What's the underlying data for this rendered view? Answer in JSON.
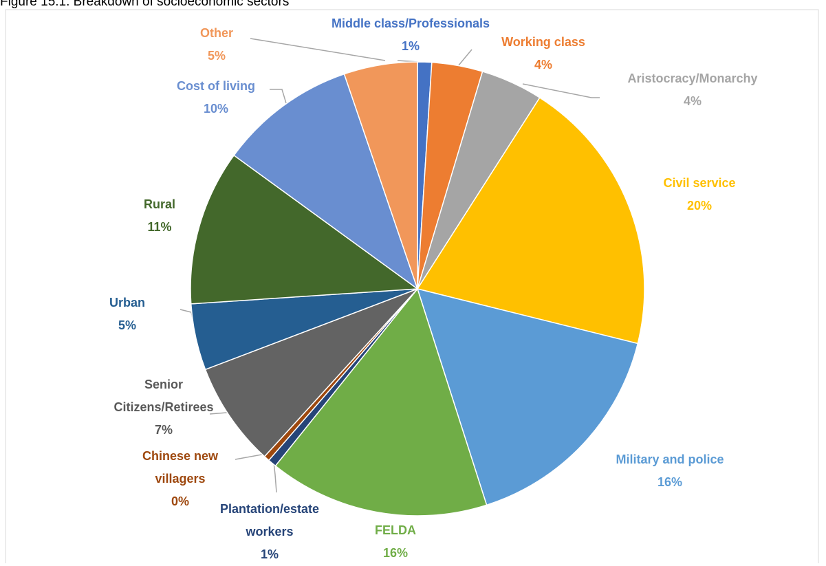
{
  "chart_data": {
    "type": "pie",
    "title": "Figure 15.1: Breakdown of socioeconomic sectors",
    "categories": [
      "Middle class/Professionals",
      "Working class",
      "Aristocracy/Monarchy",
      "Civil service",
      "Military and police",
      "FELDA",
      "Plantation/estate workers",
      "Chinese new villagers",
      "Senior Citizens/Retirees",
      "Urban",
      "Rural",
      "Cost of living",
      "Other"
    ],
    "values": [
      1.0,
      3.6,
      4.4,
      19.7,
      16.1,
      15.6,
      0.6,
      0.4,
      7.4,
      4.7,
      11.0,
      9.7,
      5.2
    ],
    "value_labels": [
      "1%",
      "4%",
      "4%",
      "20%",
      "16%",
      "16%",
      "1%",
      "0%",
      "7%",
      "5%",
      "11%",
      "10%",
      "5%"
    ],
    "colors": [
      "#4472c4",
      "#ed7d31",
      "#a5a5a5",
      "#ffc000",
      "#5b9bd5",
      "#70ad47",
      "#264478",
      "#9e480e",
      "#636363",
      "#255e91",
      "#43682b",
      "#698ed0",
      "#f1975a"
    ]
  }
}
